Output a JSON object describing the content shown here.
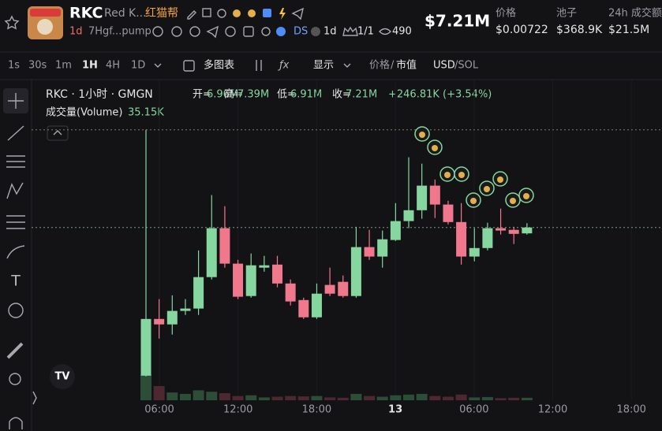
{
  "header": {
    "symbol": "RKC",
    "name": "Red K...",
    "chinese_name": "红猫帮",
    "age": "1d",
    "address": "7Hgf...pump",
    "ds": "DS",
    "ds_age": "1d",
    "holders_ratio": "1/1",
    "views": "490",
    "market_cap": "$7.21M",
    "stats": [
      {
        "label": "价格",
        "value": "$0.00722"
      },
      {
        "label": "池子",
        "value": "$368.9K"
      },
      {
        "label": "24h 成交额",
        "value": "$21.5M"
      }
    ]
  },
  "toolbar": {
    "intervals": [
      "1s",
      "30s",
      "1m",
      "1H",
      "4H",
      "1D"
    ],
    "active": 3,
    "multi_chart": "多图表",
    "display": "显示",
    "price": "价格",
    "mcap": "市值",
    "currency": "USD",
    "alt_currency": "/SOL"
  },
  "chart_data": {
    "type": "candlestick",
    "legend_title": "RKC · 1小时 · GMGN",
    "ohlc_labels": [
      {
        "label": "开=",
        "value": "6.96M"
      },
      {
        "label": "高=",
        "value": "7.39M"
      },
      {
        "label": "低=",
        "value": "6.91M"
      },
      {
        "label": "收=",
        "value": "7.21M"
      }
    ],
    "change": "+246.81K (+3.54%)",
    "volume_label": "成交量(Volume)",
    "volume_value": "35.15K",
    "x_labels": [
      "06:00",
      "12:00",
      "18:00",
      "13",
      "06:00",
      "12:00",
      "18:00"
    ],
    "ylim": [
      0,
      13.5
    ],
    "up_color": "#86d6a0",
    "down_color": "#f0788c",
    "open": [
      0.94,
      3.34,
      3.11,
      3.68,
      3.78,
      5.11,
      7.18,
      5.68,
      4.31,
      5.51,
      5.64,
      4.84,
      4.14,
      3.41,
      4.78,
      4.91,
      4.31,
      6.38,
      5.98,
      6.68,
      7.48,
      7.94,
      8.98,
      8.18,
      7.44,
      5.98,
      6.34,
      7.18,
      7.11,
      6.96
    ],
    "high": [
      11.34,
      4.18,
      4.34,
      4.18,
      6.24,
      8.58,
      8.11,
      5.84,
      6.11,
      6.01,
      6.01,
      5.01,
      4.24,
      4.84,
      5.51,
      5.18,
      7.24,
      7.11,
      7.08,
      8.24,
      10.18,
      9.91,
      9.24,
      8.34,
      8.24,
      7.18,
      7.41,
      8.01,
      7.24,
      7.39
    ],
    "low": [
      0.91,
      2.51,
      2.68,
      3.51,
      3.51,
      5.01,
      5.51,
      4.18,
      4.24,
      5.34,
      4.68,
      3.91,
      3.34,
      3.34,
      4.31,
      4.24,
      4.24,
      5.84,
      5.51,
      6.64,
      7.18,
      7.58,
      7.61,
      7.34,
      5.64,
      5.78,
      6.24,
      6.91,
      6.51,
      6.91
    ],
    "close": [
      3.34,
      3.11,
      3.68,
      3.78,
      5.11,
      7.18,
      5.68,
      4.28,
      5.61,
      5.61,
      4.84,
      4.08,
      3.41,
      4.41,
      4.41,
      4.31,
      6.38,
      5.98,
      6.71,
      7.48,
      7.94,
      8.98,
      8.18,
      7.44,
      5.98,
      6.34,
      7.18,
      7.08,
      6.94,
      7.21
    ],
    "volume": [
      360,
      200,
      110,
      90,
      140,
      120,
      100,
      60,
      70,
      40,
      50,
      60,
      55,
      60,
      40,
      35,
      90,
      60,
      50,
      70,
      80,
      90,
      60,
      50,
      80,
      40,
      45,
      30,
      35,
      35.15
    ]
  }
}
